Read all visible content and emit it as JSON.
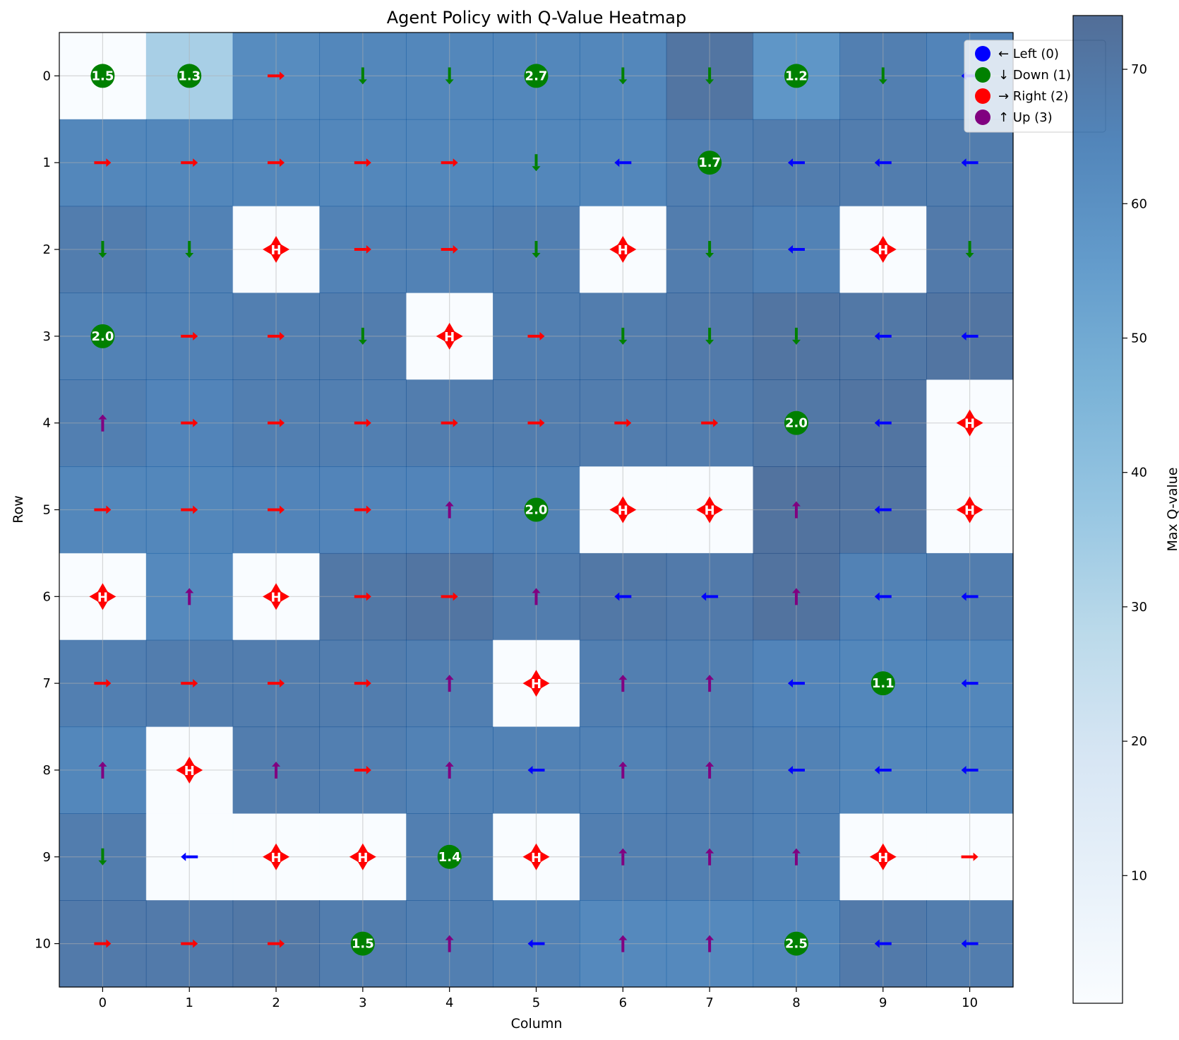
{
  "chart_data": {
    "type": "heatmap",
    "title": "Agent Policy with Q-Value Heatmap",
    "xlabel": "Column",
    "ylabel": "Row",
    "x_ticks": [
      "0",
      "1",
      "2",
      "3",
      "4",
      "5",
      "6",
      "7",
      "8",
      "9",
      "10"
    ],
    "y_ticks": [
      "0",
      "1",
      "2",
      "3",
      "4",
      "5",
      "6",
      "7",
      "8",
      "9",
      "10"
    ],
    "colorbar": {
      "label": "Max Q-value",
      "range": [
        0.5,
        74
      ],
      "ticks": [
        10,
        20,
        30,
        40,
        50,
        60,
        70
      ],
      "colormap": "Blues",
      "alpha": 0.7
    },
    "grid": true,
    "legend_position": "top-right",
    "legend": [
      {
        "label": "← Left (0)",
        "color": "#0000ff"
      },
      {
        "label": "↓ Down (1)",
        "color": "#008000"
      },
      {
        "label": "→ Right (2)",
        "color": "#ff0000"
      },
      {
        "label": "↑ Up (3)",
        "color": "#800080"
      }
    ],
    "action_colors": [
      "#0000ff",
      "#008000",
      "#ff0000",
      "#800080"
    ],
    "action_arrows": [
      "←",
      "↓",
      "→",
      "↑"
    ],
    "hole_label": "H",
    "q_values": [
      [
        0.5,
        33,
        62,
        64,
        64,
        64,
        64,
        71,
        58,
        67,
        65
      ],
      [
        64,
        64,
        64,
        64,
        64,
        64,
        64,
        67,
        68,
        68,
        68
      ],
      [
        68,
        66,
        0.5,
        66,
        66,
        67,
        0.5,
        68,
        66,
        0.5,
        69
      ],
      [
        66,
        66,
        67,
        68,
        0.5,
        67,
        68,
        69,
        71,
        70,
        71
      ],
      [
        67,
        65,
        67,
        67,
        68,
        68,
        68,
        68,
        70,
        71,
        0.5
      ],
      [
        64,
        64,
        65,
        65,
        65,
        66,
        0.5,
        0.5,
        72,
        71,
        0.5
      ],
      [
        0.5,
        63,
        0.5,
        70,
        71,
        68,
        70,
        69,
        72,
        66,
        68
      ],
      [
        67,
        68,
        68,
        68,
        67,
        0.5,
        67,
        67,
        65,
        64,
        64
      ],
      [
        64,
        0.5,
        68,
        67,
        66,
        66,
        66,
        67,
        66,
        64,
        64
      ],
      [
        68,
        0.5,
        0.5,
        0.5,
        67,
        0.5,
        67,
        67,
        66,
        0.5,
        0.5
      ],
      [
        69,
        69,
        70,
        68,
        67,
        66,
        63,
        63,
        64,
        69,
        68
      ]
    ],
    "cells": [
      [
        "P1.5",
        "P1.3",
        "R",
        "D",
        "D",
        "P2.7",
        "D",
        "D",
        "P1.2",
        "D",
        "L"
      ],
      [
        "R",
        "R",
        "R",
        "R",
        "R",
        "D",
        "L",
        "P1.7",
        "L",
        "L",
        "L"
      ],
      [
        "D",
        "D",
        "H",
        "R",
        "R",
        "D",
        "H",
        "D",
        "L",
        "H",
        "D"
      ],
      [
        "P2.0",
        "R",
        "R",
        "D",
        "H",
        "R",
        "D",
        "D",
        "D",
        "L",
        "L"
      ],
      [
        "U",
        "R",
        "R",
        "R",
        "R",
        "R",
        "R",
        "R",
        "P2.0",
        "L",
        "H"
      ],
      [
        "R",
        "R",
        "R",
        "R",
        "U",
        "P2.0",
        "H",
        "H",
        "U",
        "L",
        "H"
      ],
      [
        "H",
        "U",
        "H",
        "R",
        "R",
        "U",
        "L",
        "L",
        "U",
        "L",
        "L"
      ],
      [
        "R",
        "R",
        "R",
        "R",
        "U",
        "H",
        "U",
        "U",
        "L",
        "P1.1",
        "L"
      ],
      [
        "U",
        "H",
        "U",
        "R",
        "U",
        "L",
        "U",
        "U",
        "L",
        "L",
        "L"
      ],
      [
        "D",
        "L",
        "H",
        "H",
        "P1.4",
        "H",
        "U",
        "U",
        "U",
        "H",
        "R"
      ],
      [
        "R",
        "R",
        "R",
        "P1.5",
        "U",
        "L",
        "U",
        "U",
        "P2.5",
        "L",
        "L"
      ]
    ]
  }
}
